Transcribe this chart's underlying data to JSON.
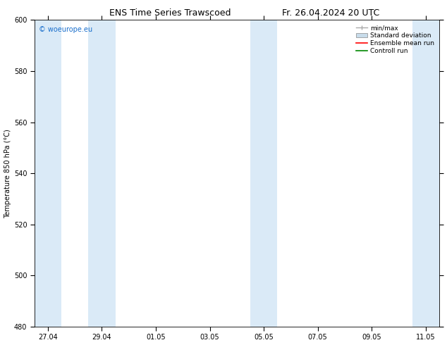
{
  "title_left": "ENS Time Series Trawscoed",
  "title_right": "Fr. 26.04.2024 20 UTC",
  "ylabel": "Temperature 850 hPa (°C)",
  "ylim": [
    480,
    600
  ],
  "yticks": [
    480,
    500,
    520,
    540,
    560,
    580,
    600
  ],
  "xtick_labels": [
    "27.04",
    "29.04",
    "01.05",
    "03.05",
    "05.05",
    "07.05",
    "09.05",
    "11.05"
  ],
  "xtick_positions": [
    0,
    2,
    4,
    6,
    8,
    10,
    12,
    14
  ],
  "bg_color": "#ffffff",
  "plot_bg_color": "#ffffff",
  "shaded_band_color": "#daeaf7",
  "watermark_text": "© woeurope.eu",
  "watermark_color": "#1a6fcc",
  "legend_items": [
    {
      "label": "min/max",
      "color": "#aaaaaa",
      "type": "errorbar"
    },
    {
      "label": "Standard deviation",
      "color": "#c8dcea",
      "type": "fill"
    },
    {
      "label": "Ensemble mean run",
      "color": "#ff0000",
      "type": "line"
    },
    {
      "label": "Controll run",
      "color": "#008800",
      "type": "line"
    }
  ],
  "shaded_columns": [
    {
      "xstart": -0.5,
      "xend": 0.5
    },
    {
      "xstart": 1.5,
      "xend": 2.5
    },
    {
      "xstart": 7.5,
      "xend": 8.5
    },
    {
      "xstart": 13.5,
      "xend": 14.5
    }
  ],
  "xlim_left": -0.5,
  "xlim_right": 14.5,
  "title_fontsize": 9,
  "tick_fontsize": 7,
  "ylabel_fontsize": 7,
  "watermark_fontsize": 7,
  "legend_fontsize": 6.5
}
